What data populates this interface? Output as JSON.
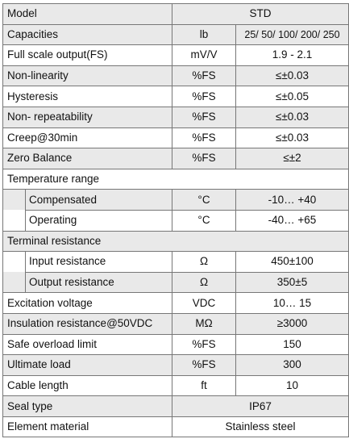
{
  "header": {
    "label": "Model",
    "value": "STD"
  },
  "rows": [
    {
      "label": "Capacities",
      "unit": "lb",
      "value": "25/ 50/ 100/ 200/ 250"
    },
    {
      "label": "Full scale output(FS)",
      "unit": "mV/V",
      "value": "1.9 - 2.1"
    },
    {
      "label": "Non-linearity",
      "unit": "%FS",
      "value": "≤±0.03"
    },
    {
      "label": "Hysteresis",
      "unit": "%FS",
      "value": "≤±0.05"
    },
    {
      "label": "Non- repeatability",
      "unit": "%FS",
      "value": "≤±0.03"
    },
    {
      "label": "Creep@30min",
      "unit": "%FS",
      "value": "≤±0.03"
    },
    {
      "label": "Zero Balance",
      "unit": "%FS",
      "value": "≤±2"
    }
  ],
  "temperature": {
    "label": "Temperature range",
    "items": [
      {
        "label": "Compensated",
        "unit": "°C",
        "value": "-10… +40"
      },
      {
        "label": "Operating",
        "unit": "°C",
        "value": "-40… +65"
      }
    ]
  },
  "terminal": {
    "label": "Terminal resistance",
    "items": [
      {
        "label": "Input resistance",
        "unit": "Ω",
        "value": "450±100"
      },
      {
        "label": "Output resistance",
        "unit": "Ω",
        "value": "350±5"
      }
    ]
  },
  "rows2": [
    {
      "label": "Excitation voltage",
      "unit": "VDC",
      "value": "10… 15"
    },
    {
      "label": "Insulation resistance@50VDC",
      "unit": "MΩ",
      "value": "≥3000"
    },
    {
      "label": "Safe overload limit",
      "unit": "%FS",
      "value": "150"
    },
    {
      "label": "Ultimate load",
      "unit": "%FS",
      "value": "300"
    },
    {
      "label": "Cable length",
      "unit": "ft",
      "value": "10"
    }
  ],
  "seal": {
    "label": "Seal type",
    "value": "IP67"
  },
  "material": {
    "label": "Element material",
    "value": "Stainless steel"
  },
  "colors": {
    "shade": "#e9e9e9",
    "border": "#777777"
  }
}
